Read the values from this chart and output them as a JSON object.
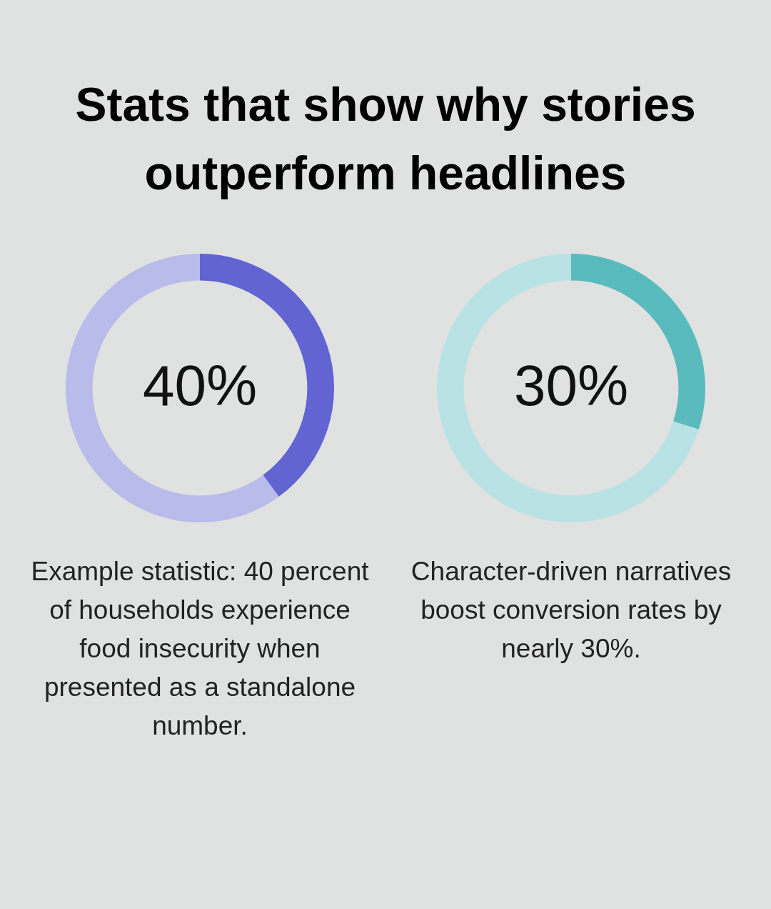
{
  "chart_data": [
    {
      "type": "donut",
      "title": "Stats that show why stories outperform headlines",
      "categories": [
        null,
        null
      ],
      "values": [
        40,
        60
      ],
      "colors": [
        "#6264d2",
        "#b9bbea"
      ],
      "value_labels": [
        "40%",
        null
      ],
      "annotations": [
        "Example statistic: 40 percent of households experience food insecurity when presented as a standalone number."
      ]
    },
    {
      "type": "donut",
      "categories": [
        null,
        null
      ],
      "values": [
        30,
        70
      ],
      "colors": [
        "#5abbbf",
        "#b9e2e4"
      ],
      "value_labels": [
        "30%",
        null
      ],
      "annotations": [
        "Character-driven narratives boost conversion rates by nearly 30%."
      ]
    }
  ]
}
